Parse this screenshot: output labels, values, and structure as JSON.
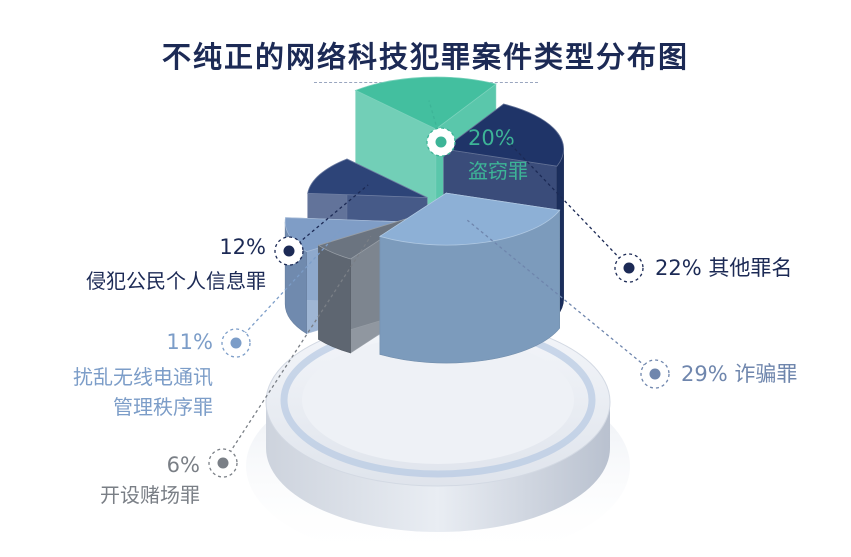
{
  "title": "不纯正的网络科技犯罪案件类型分布图",
  "chart_data": {
    "type": "pie",
    "style": "3d-exploded-pie",
    "title": "不纯正的网络科技犯罪案件类型分布图",
    "unit": "%",
    "slices": [
      {
        "label": "盗窃罪",
        "pct_label": "20%",
        "value": 20,
        "color": "#43bf9f"
      },
      {
        "label": "其他罪名",
        "pct_label": "22%",
        "value": 22,
        "color": "#1f3468"
      },
      {
        "label": "诈骗罪",
        "pct_label": "29%",
        "value": 29,
        "color": "#8db0d6"
      },
      {
        "label": "开设赌场罪",
        "pct_label": "6%",
        "value": 6,
        "color": "#6b7480"
      },
      {
        "label": "扰乱无线电通讯管理秩序罪",
        "label_lines": [
          "扰乱无线电通讯",
          "管理秩序罪"
        ],
        "pct_label": "11%",
        "value": 11,
        "color": "#7f9dc6"
      },
      {
        "label": "侵犯公民个人信息罪",
        "pct_label": "12%",
        "value": 12,
        "color": "#2d4478"
      }
    ]
  },
  "label_colors": {
    "盗窃罪": "#3db497",
    "其他罪名": "#1c2a55",
    "诈骗罪": "#6f86ad",
    "开设赌场罪": "#7a7f86",
    "扰乱无线电通讯管理秩序罪": "#7c9dc8",
    "侵犯公民个人信息罪": "#1c2a55"
  }
}
